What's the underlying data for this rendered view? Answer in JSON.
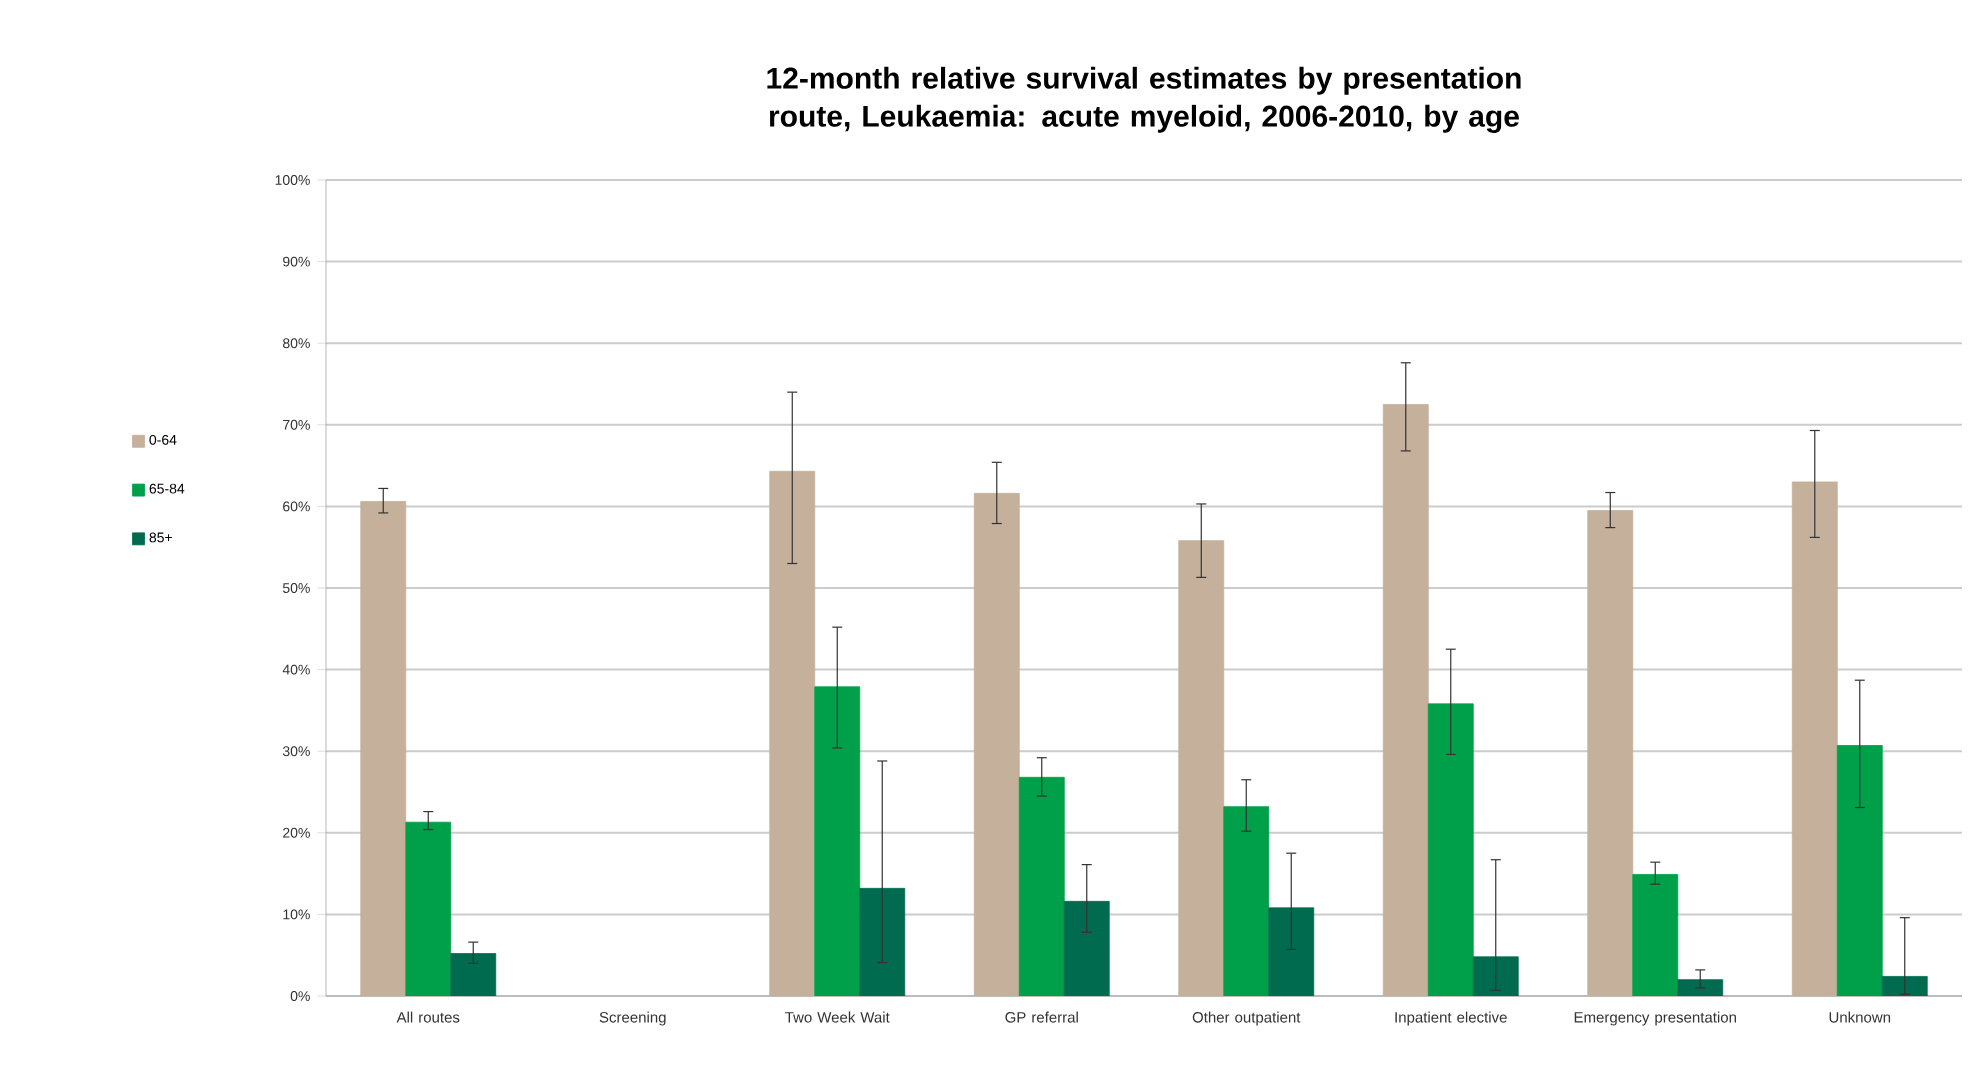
{
  "chart_data": {
    "type": "bar",
    "title": "12-month relative survival estimates by presentation route, Leukaemia: acute myeloid, 2006-2010, by age",
    "categories": [
      "All routes",
      "Screening",
      "Two Week Wait",
      "GP referral",
      "Other outpatient",
      "Inpatient elective",
      "Emergency presentation",
      "Unknown"
    ],
    "series": [
      {
        "name": "0-64",
        "color": "#c4b09b",
        "values": [
          60.6,
          null,
          64.3,
          61.6,
          55.8,
          72.5,
          59.5,
          63.0
        ],
        "errors": [
          [
            59.2,
            62.2
          ],
          null,
          [
            53.0,
            74.0
          ],
          [
            57.9,
            65.4
          ],
          [
            51.3,
            60.3
          ],
          [
            66.8,
            77.6
          ],
          [
            57.4,
            61.7
          ],
          [
            56.2,
            69.3
          ]
        ]
      },
      {
        "name": "65-84",
        "color": "#00a04a",
        "values": [
          21.3,
          null,
          37.9,
          26.8,
          23.2,
          35.8,
          14.9,
          30.7
        ],
        "errors": [
          [
            20.4,
            22.6
          ],
          null,
          [
            30.4,
            45.2
          ],
          [
            24.5,
            29.2
          ],
          [
            20.2,
            26.5
          ],
          [
            29.6,
            42.5
          ],
          [
            13.7,
            16.4
          ],
          [
            23.1,
            38.7
          ]
        ]
      },
      {
        "name": "85+",
        "color": "#006b4f",
        "values": [
          5.2,
          null,
          13.2,
          11.6,
          10.8,
          4.8,
          2.0,
          2.4
        ],
        "errors": [
          [
            4.0,
            6.6
          ],
          null,
          [
            4.1,
            28.8
          ],
          [
            7.8,
            16.1
          ],
          [
            5.7,
            17.5
          ],
          [
            0.7,
            16.7
          ],
          [
            1.0,
            3.2
          ],
          [
            0.2,
            9.6
          ]
        ]
      }
    ],
    "ylim": [
      0,
      100
    ],
    "yticks": [
      {
        "value": 0,
        "label": "0%"
      },
      {
        "value": 10,
        "label": "10%"
      },
      {
        "value": 20,
        "label": "20%"
      },
      {
        "value": 30,
        "label": "30%"
      },
      {
        "value": 40,
        "label": "40%"
      },
      {
        "value": 50,
        "label": "50%"
      },
      {
        "value": 60,
        "label": "60%"
      },
      {
        "value": 70,
        "label": "70%"
      },
      {
        "value": 80,
        "label": "80%"
      },
      {
        "value": 90,
        "label": "90%"
      },
      {
        "value": 100,
        "label": "100%"
      }
    ],
    "grid": "y",
    "legend": "left"
  }
}
